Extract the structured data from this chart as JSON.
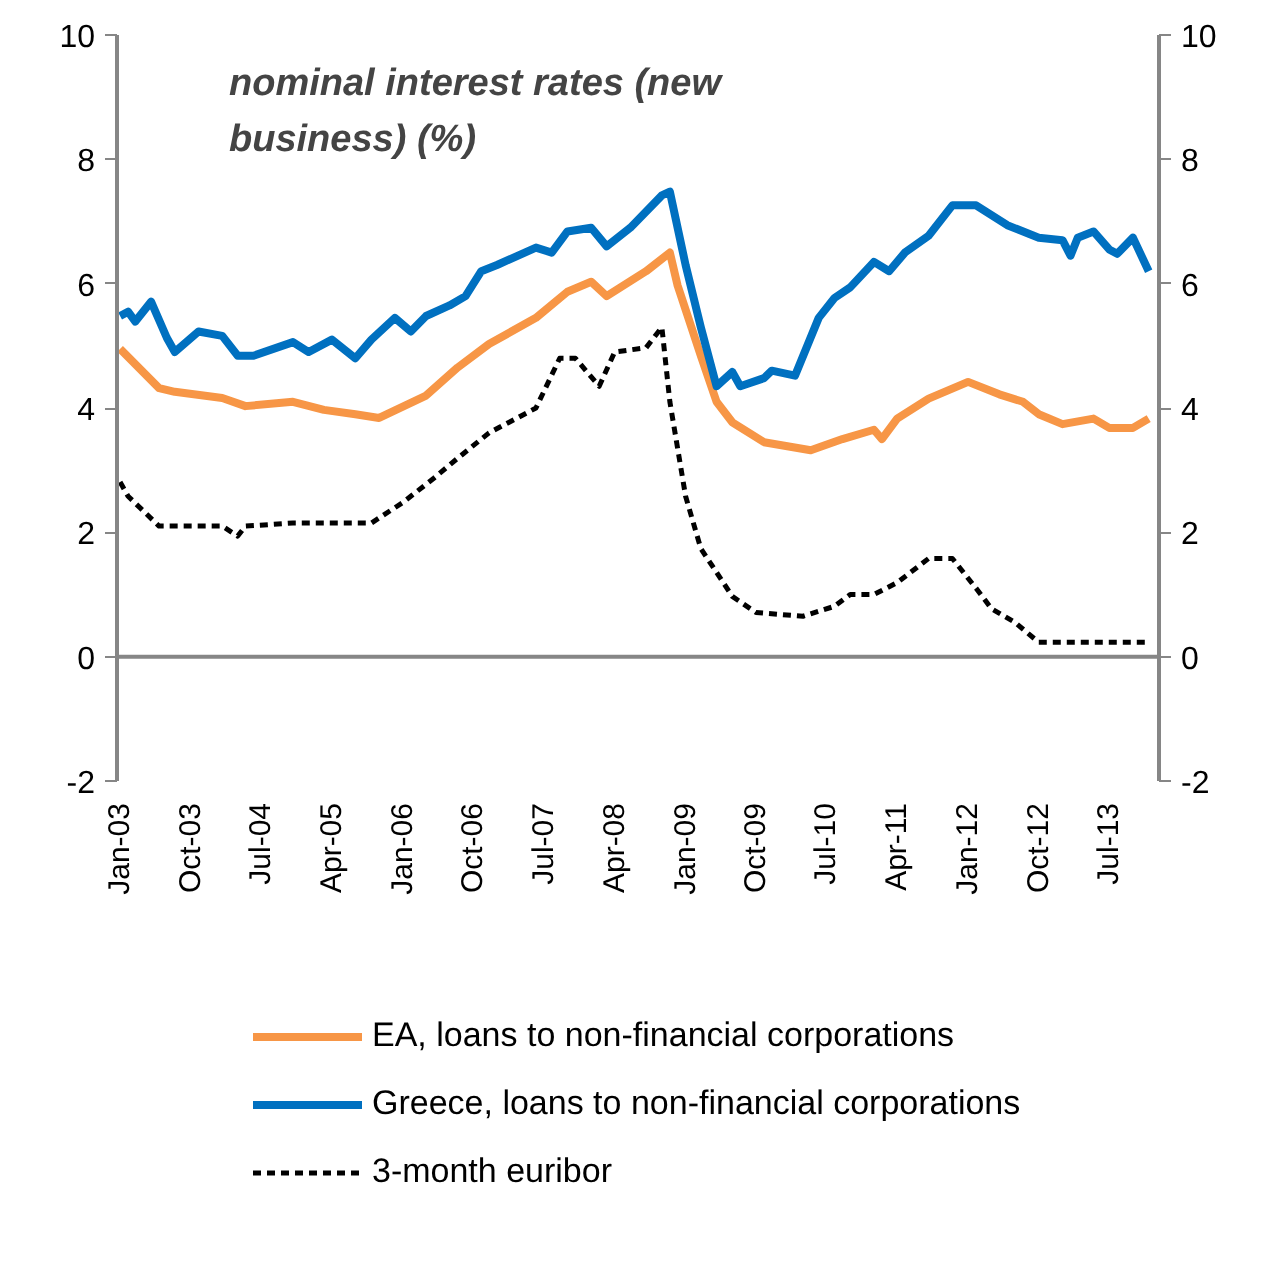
{
  "chart_data": {
    "type": "line",
    "title": "nominal interest rates (new business) (%)",
    "series": [
      {
        "name": "EA, loans to non-financial corporations",
        "color": "#f79646",
        "line_style": "solid",
        "x": [
          "2003-01",
          "2003-06",
          "2003-08",
          "2004-02",
          "2004-05",
          "2004-11",
          "2005-03",
          "2005-07",
          "2005-10",
          "2006-04",
          "2006-08",
          "2006-12",
          "2007-06",
          "2007-10",
          "2008-01",
          "2008-03",
          "2008-08",
          "2008-11",
          "2008-12",
          "2009-03",
          "2009-05",
          "2009-07",
          "2009-11",
          "2010-05",
          "2010-09",
          "2011-01",
          "2011-02",
          "2011-04",
          "2011-08",
          "2012-01",
          "2012-05",
          "2012-08",
          "2012-10",
          "2013-01",
          "2013-05",
          "2013-07",
          "2013-10",
          "2013-12"
        ],
        "values": [
          4.95,
          4.32,
          4.26,
          4.16,
          4.03,
          4.1,
          3.97,
          3.9,
          3.84,
          4.2,
          4.65,
          5.03,
          5.45,
          5.87,
          6.03,
          5.8,
          6.2,
          6.5,
          5.97,
          4.84,
          4.1,
          3.77,
          3.45,
          3.32,
          3.5,
          3.65,
          3.5,
          3.83,
          4.15,
          4.42,
          4.22,
          4.1,
          3.9,
          3.74,
          3.83,
          3.68,
          3.68,
          3.83
        ]
      },
      {
        "name": "Greece, loans to non-financial corporations",
        "color": "#0070c0",
        "line_style": "solid",
        "x": [
          "2003-01",
          "2003-02",
          "2003-03",
          "2003-05",
          "2003-07",
          "2003-08",
          "2003-11",
          "2004-02",
          "2004-04",
          "2004-06",
          "2004-11",
          "2005-01",
          "2005-04",
          "2005-07",
          "2005-09",
          "2005-12",
          "2006-02",
          "2006-04",
          "2006-07",
          "2006-09",
          "2006-11",
          "2007-01",
          "2007-06",
          "2007-08",
          "2007-10",
          "2008-01",
          "2008-03",
          "2008-06",
          "2008-10",
          "2008-11",
          "2009-01",
          "2009-03",
          "2009-05",
          "2009-07",
          "2009-08",
          "2009-11",
          "2009-12",
          "2010-03",
          "2010-06",
          "2010-08",
          "2010-10",
          "2011-01",
          "2011-03",
          "2011-05",
          "2011-08",
          "2011-11",
          "2012-02",
          "2012-06",
          "2012-10",
          "2013-01",
          "2013-02",
          "2013-03",
          "2013-05",
          "2013-07",
          "2013-08",
          "2013-10",
          "2013-12"
        ],
        "values": [
          5.48,
          5.55,
          5.39,
          5.71,
          5.13,
          4.9,
          5.23,
          5.16,
          4.84,
          4.84,
          5.06,
          4.9,
          5.1,
          4.8,
          5.1,
          5.45,
          5.23,
          5.48,
          5.65,
          5.8,
          6.2,
          6.3,
          6.58,
          6.5,
          6.84,
          6.9,
          6.6,
          6.9,
          7.42,
          7.48,
          6.3,
          5.3,
          4.35,
          4.58,
          4.35,
          4.48,
          4.6,
          4.52,
          5.45,
          5.77,
          5.94,
          6.35,
          6.2,
          6.5,
          6.77,
          7.26,
          7.26,
          6.94,
          6.74,
          6.7,
          6.45,
          6.74,
          6.84,
          6.55,
          6.48,
          6.74,
          6.2
        ]
      },
      {
        "name": "3-month euribor",
        "color": "#000000",
        "line_style": "dashed",
        "x": [
          "2003-01",
          "2003-02",
          "2003-06",
          "2004-02",
          "2004-04",
          "2004-05",
          "2004-11",
          "2005-09",
          "2006-01",
          "2006-05",
          "2006-08",
          "2006-12",
          "2007-06",
          "2007-09",
          "2007-11",
          "2008-02",
          "2008-04",
          "2008-08",
          "2008-10",
          "2008-11",
          "2009-01",
          "2009-03",
          "2009-07",
          "2009-10",
          "2010-04",
          "2010-08",
          "2010-10",
          "2011-01",
          "2011-04",
          "2011-08",
          "2011-11",
          "2012-02",
          "2012-04",
          "2012-07",
          "2012-10",
          "2013-12"
        ],
        "values": [
          2.81,
          2.58,
          2.1,
          2.1,
          1.94,
          2.1,
          2.15,
          2.15,
          2.48,
          2.87,
          3.19,
          3.6,
          4.0,
          4.8,
          4.8,
          4.35,
          4.9,
          4.97,
          5.3,
          4.1,
          2.58,
          1.74,
          0.97,
          0.71,
          0.65,
          0.81,
          1.0,
          1.0,
          1.19,
          1.58,
          1.58,
          1.1,
          0.77,
          0.55,
          0.23,
          0.23
        ]
      }
    ],
    "xlim": [
      "2002-12-20",
      "2014-01-10"
    ],
    "xticks": [
      {
        "value": "2003-01",
        "label": "Jan-03"
      },
      {
        "value": "2003-10",
        "label": "Oct-03"
      },
      {
        "value": "2004-07",
        "label": "Jul-04"
      },
      {
        "value": "2005-04",
        "label": "Apr-05"
      },
      {
        "value": "2006-01",
        "label": "Jan-06"
      },
      {
        "value": "2006-10",
        "label": "Oct-06"
      },
      {
        "value": "2007-07",
        "label": "Jul-07"
      },
      {
        "value": "2008-04",
        "label": "Apr-08"
      },
      {
        "value": "2009-01",
        "label": "Jan-09"
      },
      {
        "value": "2009-10",
        "label": "Oct-09"
      },
      {
        "value": "2010-07",
        "label": "Jul-10"
      },
      {
        "value": "2011-04",
        "label": "Apr-11"
      },
      {
        "value": "2012-01",
        "label": "Jan-12"
      },
      {
        "value": "2012-10",
        "label": "Oct-12"
      },
      {
        "value": "2013-07",
        "label": "Jul-13"
      }
    ],
    "ylim": [
      -2,
      10
    ],
    "yticks": [
      -2,
      0,
      2,
      4,
      6,
      8,
      10
    ],
    "y2lim": [
      -2,
      10
    ],
    "y2ticks": [
      -2,
      0,
      2,
      4,
      6,
      8,
      10
    ],
    "ref_lines": [
      {
        "axis": "y",
        "value": 0,
        "color": "#868686"
      }
    ],
    "grid": false,
    "legend": "bottom",
    "marker": "none"
  }
}
